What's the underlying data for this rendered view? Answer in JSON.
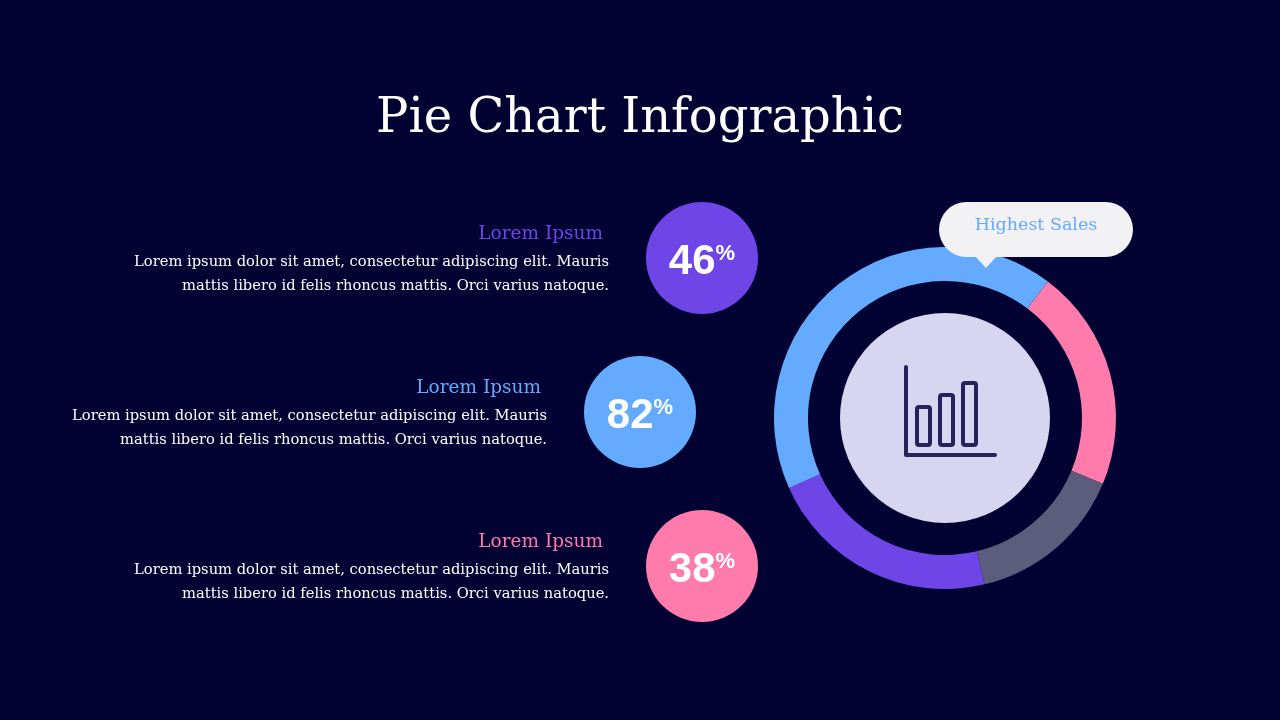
{
  "chart_data": [
    {
      "type": "donut",
      "title": "Pie Chart Infographic",
      "categories": [
        null,
        null,
        null,
        null
      ],
      "values": [
        21,
        15,
        22,
        42
      ],
      "colors": [
        "#ff7bac",
        "#5c5c7c",
        "#6e46e8",
        "#64aaff"
      ],
      "annotations": [
        "Highest Sales"
      ]
    },
    {
      "type": "other",
      "categories": [
        "Lorem Ipsum",
        "Lorem Ipsum",
        "Lorem Ipsum"
      ],
      "value_labels": [
        "46$^{%}$",
        "82$^{%}$",
        "38$^{%}$"
      ],
      "colors": [
        "#6e46e8",
        "#64aaff",
        "#ff7bac"
      ],
      "annotations": [
        "Lorem ipsum dolor sit amet, consectetur adipiscing elit. Mauris mattis libero id felis rhoncus mattis. Orci varius natoque.",
        "Lorem ipsum dolor sit amet, consectetur adipiscing elit. Mauris mattis libero id felis rhoncus mattis. Orci varius natoque.",
        "Lorem ipsum dolor sit amet, consectetur adipiscing elit. Mauris mattis libero id felis rhoncus mattis. Orci varius natoque."
      ]
    }
  ]
}
